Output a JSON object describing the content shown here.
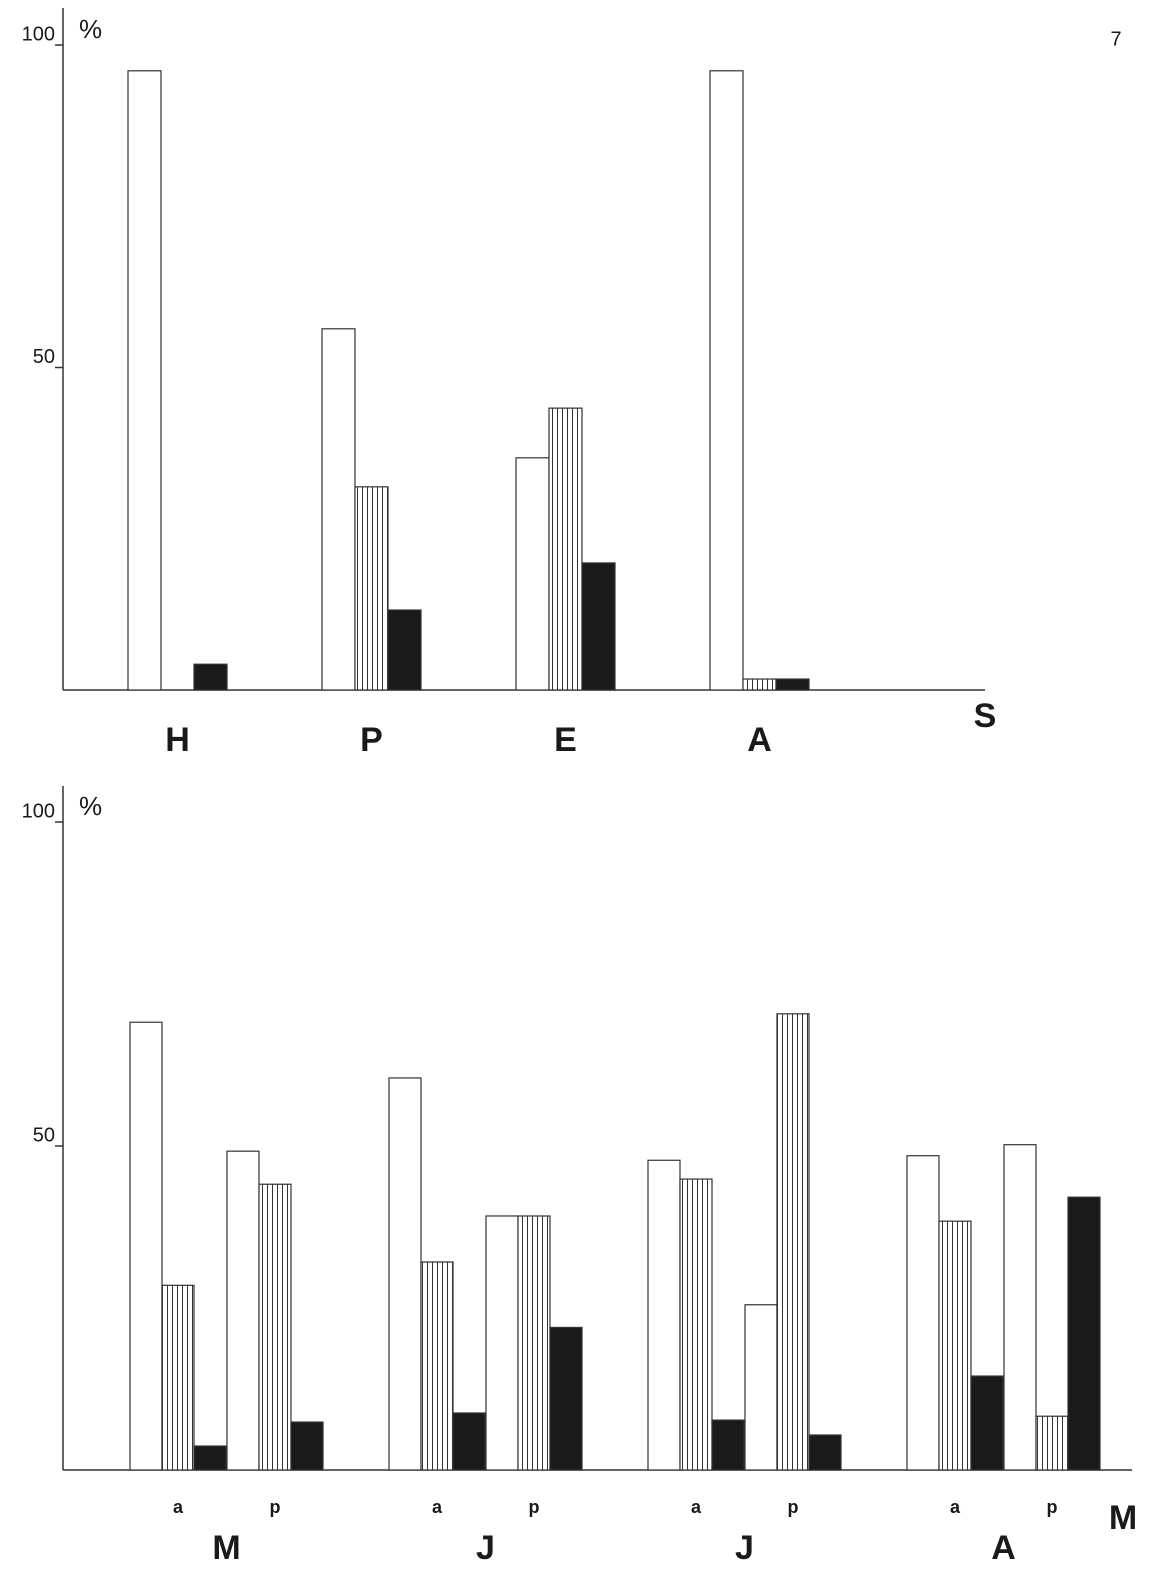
{
  "page_number": "7",
  "chart_data": [
    {
      "type": "bar",
      "ylabel": "%",
      "xlabel": "S",
      "categories": [
        "H",
        "P",
        "E",
        "A"
      ],
      "ylim": [
        0,
        100
      ],
      "yticks": [
        50,
        100
      ],
      "series": [
        {
          "color": "#ffffff",
          "hatch": false,
          "values": [
            96,
            56,
            36,
            96
          ]
        },
        {
          "color": "#ffffff",
          "hatch": true,
          "values": [
            0,
            31.5,
            43.7,
            1.7
          ]
        },
        {
          "color": "#1a1a1a",
          "hatch": false,
          "values": [
            4,
            12.4,
            19.7,
            1.7
          ]
        }
      ]
    },
    {
      "type": "bar",
      "ylabel": "%",
      "xlabel": "M",
      "categories": [
        "a",
        "p",
        "a",
        "p",
        "a",
        "p",
        "a",
        "p"
      ],
      "groups": [
        "M",
        "J",
        "J",
        "A"
      ],
      "ylim": [
        0,
        100
      ],
      "yticks": [
        50,
        100
      ],
      "series": [
        {
          "color": "#ffffff",
          "hatch": false,
          "values": [
            69.1,
            49.2,
            60.5,
            39.2,
            47.8,
            25.5,
            48.5,
            50.2
          ]
        },
        {
          "color": "#ffffff",
          "hatch": true,
          "values": [
            28.5,
            44.1,
            32.1,
            39.2,
            44.9,
            70.4,
            38.4,
            8.3
          ]
        },
        {
          "color": "#1a1a1a",
          "hatch": false,
          "values": [
            3.7,
            7.4,
            8.8,
            22,
            7.7,
            5.4,
            14.5,
            42.1
          ]
        }
      ]
    }
  ]
}
